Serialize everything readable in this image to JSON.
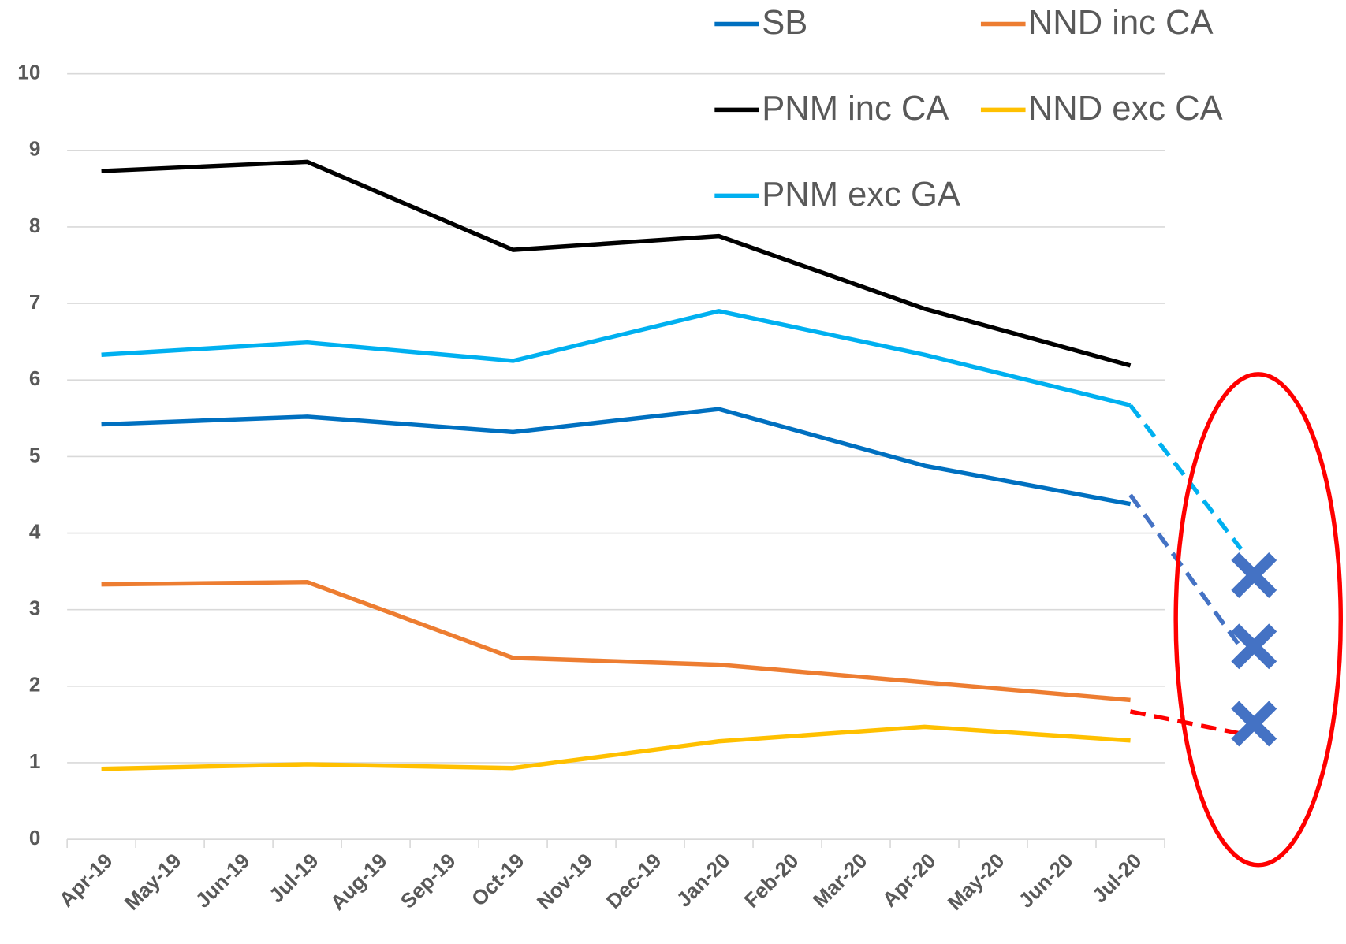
{
  "chart_data": {
    "type": "line",
    "categories": [
      "Apr-19",
      "May-19",
      "Jun-19",
      "Jul-19",
      "Aug-19",
      "Sep-19",
      "Oct-19",
      "Nov-19",
      "Dec-19",
      "Jan-20",
      "Feb-20",
      "Mar-20",
      "Apr-20",
      "May-20",
      "Jun-20",
      "Jul-20"
    ],
    "x": [
      "Apr-19",
      "Jul-19",
      "Oct-19",
      "Jan-20",
      "Apr-20",
      "Jul-20"
    ],
    "series": [
      {
        "name": "SB",
        "color": "#0070c0",
        "values": [
          5.42,
          5.52,
          5.32,
          5.62,
          4.88,
          4.38
        ]
      },
      {
        "name": "NND inc CA",
        "color": "#ed7d31",
        "values": [
          3.33,
          3.36,
          2.37,
          2.28,
          2.05,
          1.82
        ]
      },
      {
        "name": "PNM inc CA",
        "color": "#000000",
        "values": [
          8.73,
          8.85,
          7.7,
          7.88,
          6.93,
          6.19
        ]
      },
      {
        "name": "NND exc CA",
        "color": "#ffc000",
        "values": [
          0.92,
          0.98,
          0.93,
          1.28,
          1.47,
          1.29
        ]
      },
      {
        "name": "PNM exc GA",
        "color": "#00b0f0",
        "values": [
          6.33,
          6.49,
          6.25,
          6.9,
          6.33,
          5.67
        ]
      }
    ],
    "projections": [
      {
        "color": "#00b0f0",
        "values": [
          5.67,
          3.79
        ]
      },
      {
        "color": "#4472c4",
        "values": [
          4.5,
          2.5
        ]
      },
      {
        "color": "#ff0000",
        "values": [
          1.67,
          1.38
        ]
      }
    ],
    "markers": {
      "color": "#4472c4",
      "values": [
        3.45,
        2.52,
        1.51
      ]
    },
    "ylim": [
      0,
      10
    ],
    "yticks": [
      0,
      1,
      2,
      3,
      4,
      5,
      6,
      7,
      8,
      9,
      10
    ],
    "grid": true
  }
}
